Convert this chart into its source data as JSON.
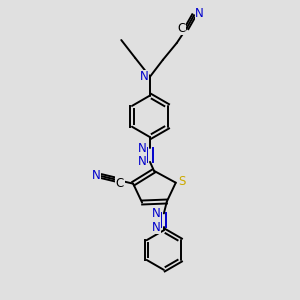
{
  "background_color": "#e0e0e0",
  "bond_color": "#000000",
  "nitrogen_color": "#0000cc",
  "sulfur_color": "#ccaa00",
  "carbon_color": "#000000",
  "figsize": [
    3.0,
    3.0
  ],
  "dpi": 100,
  "xlim": [
    0,
    10
  ],
  "ylim": [
    0,
    15
  ],
  "lw": 1.4,
  "fs": 8.5
}
